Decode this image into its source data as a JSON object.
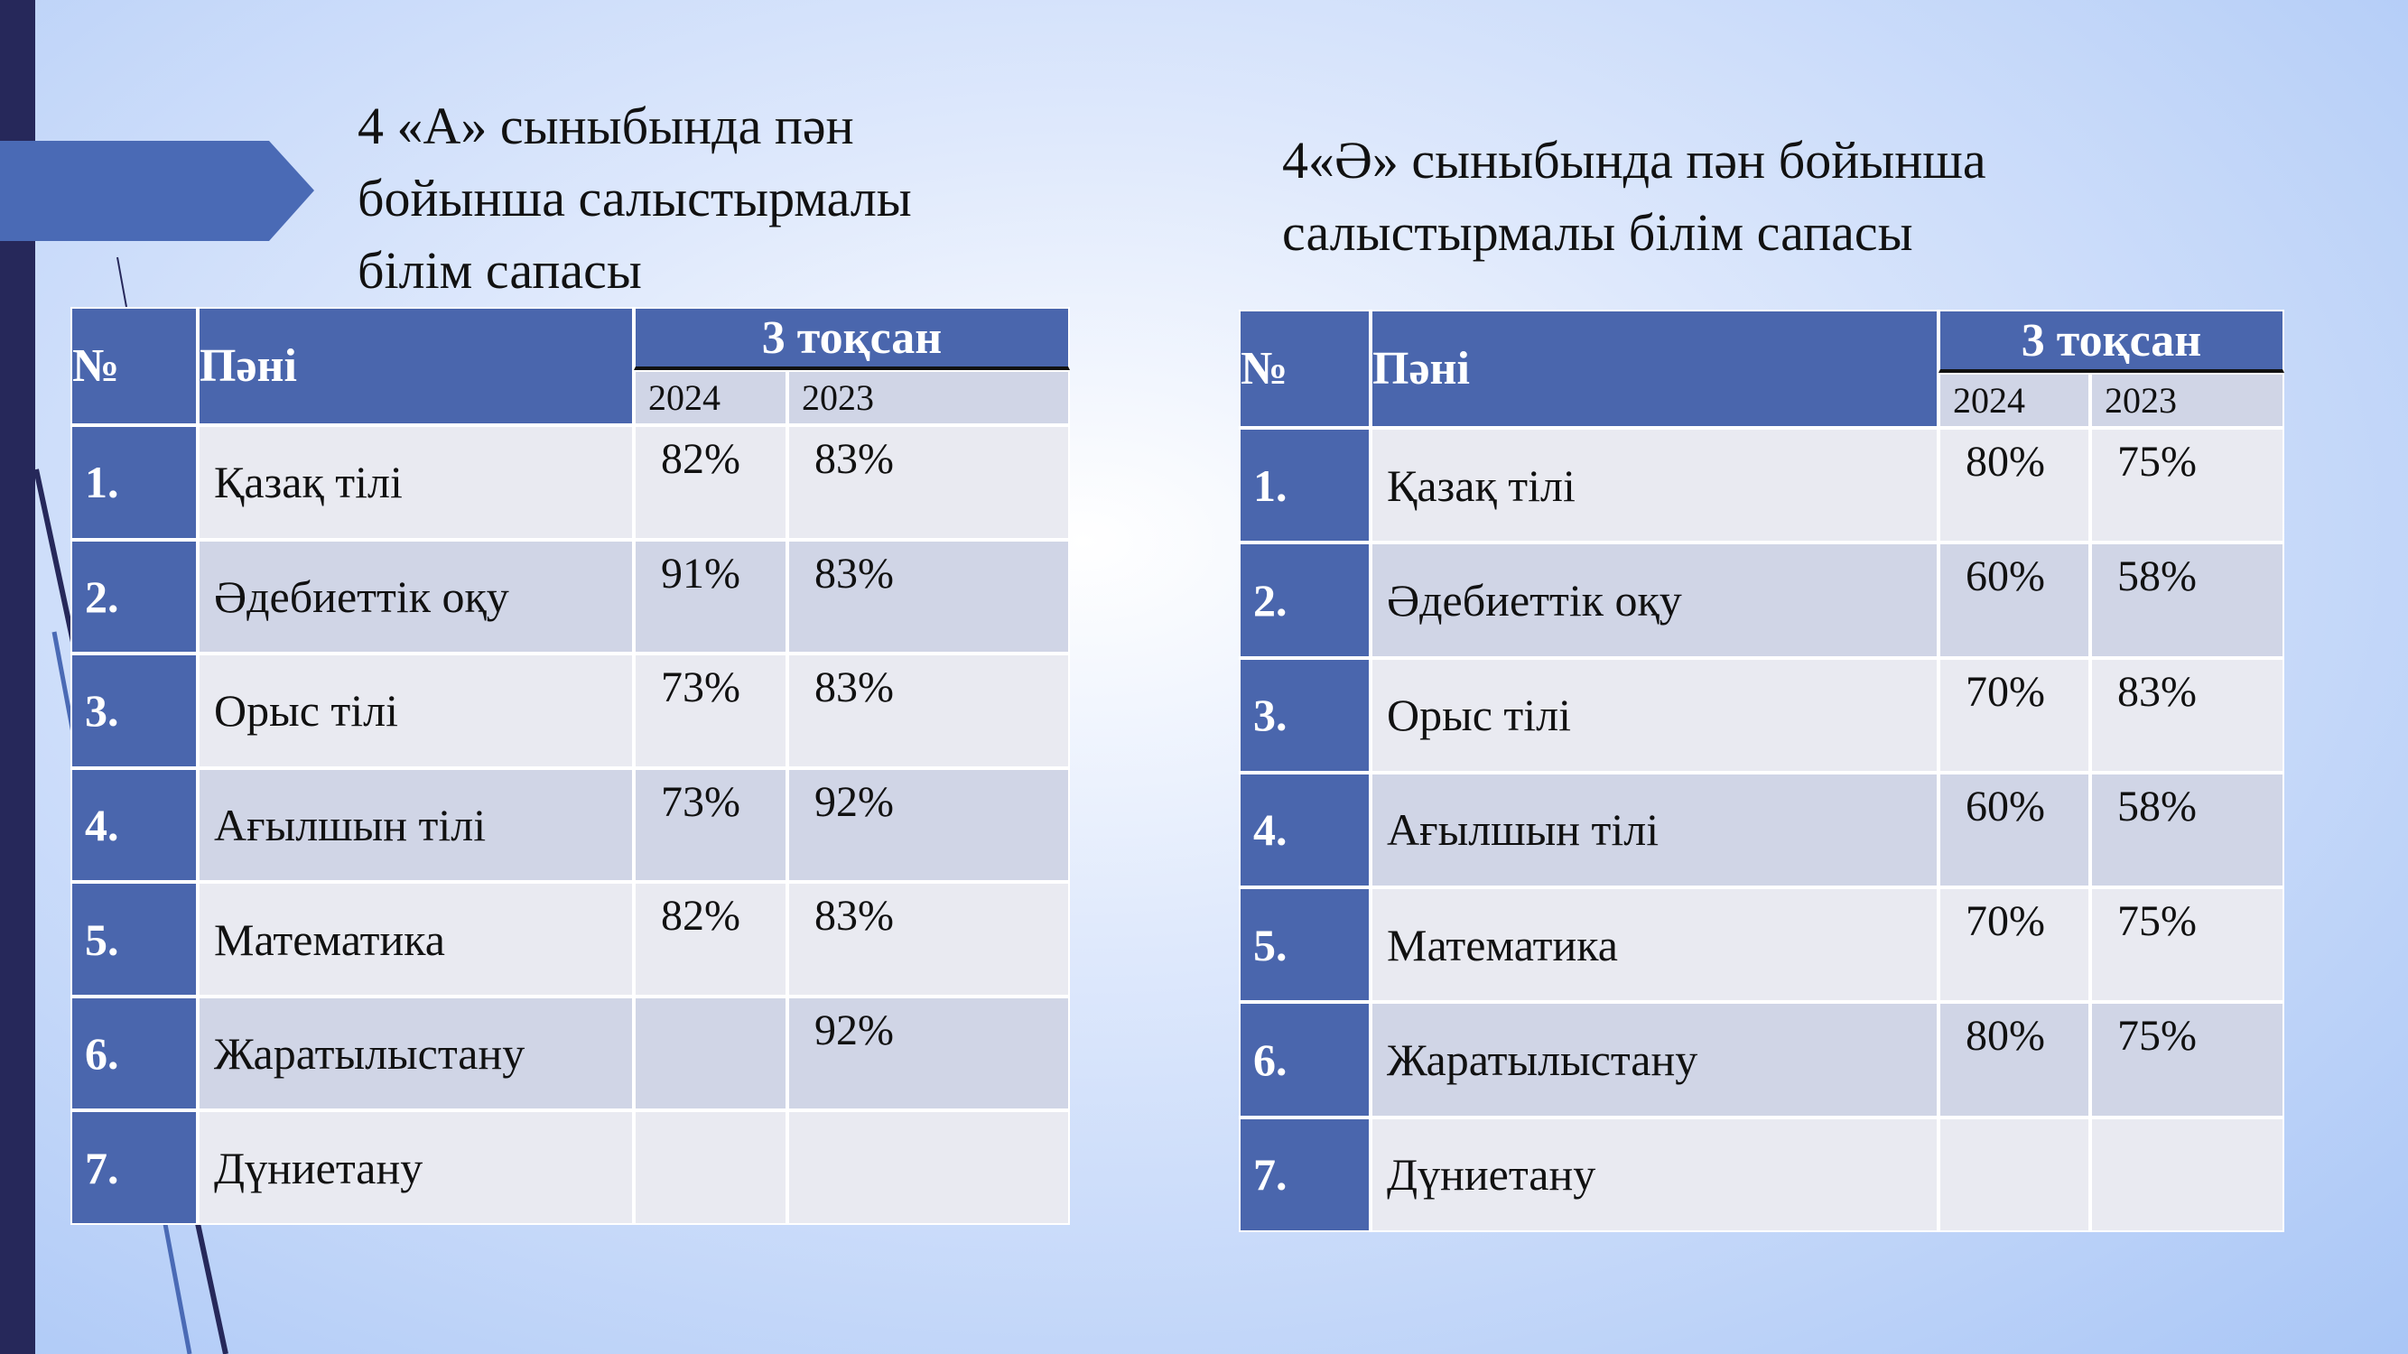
{
  "left": {
    "title": "4 «А» сыныбында  пән бойынша салыстырмалы білім сапасы",
    "table": {
      "header": {
        "number": "№",
        "subject": "Пәні",
        "period": "3 тоқсан",
        "years": [
          "2024",
          "2023"
        ]
      },
      "rows": [
        [
          "1.",
          "Қазақ тілі",
          "82%",
          "83%"
        ],
        [
          "2.",
          "Әдебиеттік оқу",
          "91%",
          "83%"
        ],
        [
          "3.",
          "Орыс  тілі",
          "73%",
          "83%"
        ],
        [
          "4.",
          "Ағылшын тілі",
          "73%",
          "92%"
        ],
        [
          "5.",
          "Математика",
          "82%",
          "83%"
        ],
        [
          "6.",
          "Жаратылыстану",
          null,
          "92%"
        ],
        [
          "7.",
          "Дүниетану",
          null,
          null
        ]
      ]
    }
  },
  "right": {
    "title": "4«Ә» сыныбында  пән бойынша салыстырмалы  білім сапасы",
    "table": {
      "header": {
        "number": "№",
        "subject": "Пәні",
        "period": "3 тоқсан",
        "years": [
          "2024",
          "2023"
        ]
      },
      "rows": [
        [
          "1.",
          "Қазақ тілі",
          "80%",
          "75%"
        ],
        [
          "2.",
          "Әдебиеттік оқу",
          "60%",
          "58%"
        ],
        [
          "3.",
          "Орыс  тілі",
          "70%",
          "83%"
        ],
        [
          "4.",
          "Ағылшын тілі",
          "60%",
          "58%"
        ],
        [
          "5.",
          "Математика",
          "70%",
          "75%"
        ],
        [
          "6.",
          "Жаратылыстану",
          "80%",
          "75%"
        ],
        [
          "7.",
          "Дүниетану",
          null,
          null
        ]
      ]
    }
  }
}
